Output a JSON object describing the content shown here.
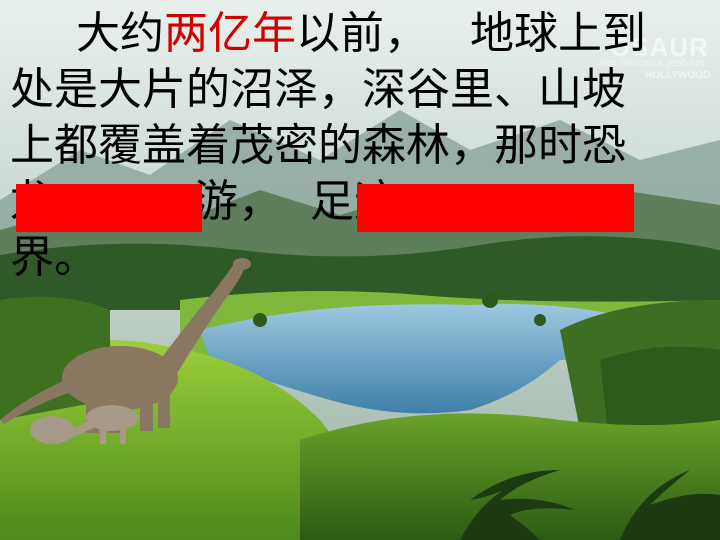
{
  "slide": {
    "line1": {
      "prefix": "大约",
      "highlight": "两亿年",
      "suffix": "以前，   地球上到"
    },
    "line2": "处是大片的沼泽，深谷里、山坡",
    "line3": "上都覆盖着茂密的森林，那时恐",
    "line4": {
      "frag1": "龙",
      "frag2": "游，  足迹",
      "frag3": ""
    },
    "line5": "界。",
    "watermark_main": "OSAUR",
    "watermark_url": "http://dinosaur.yeah.net",
    "watermark_studio": "HOLLYWOOD"
  },
  "colors": {
    "highlight": "#d00000",
    "redaction": "#ff0000"
  }
}
